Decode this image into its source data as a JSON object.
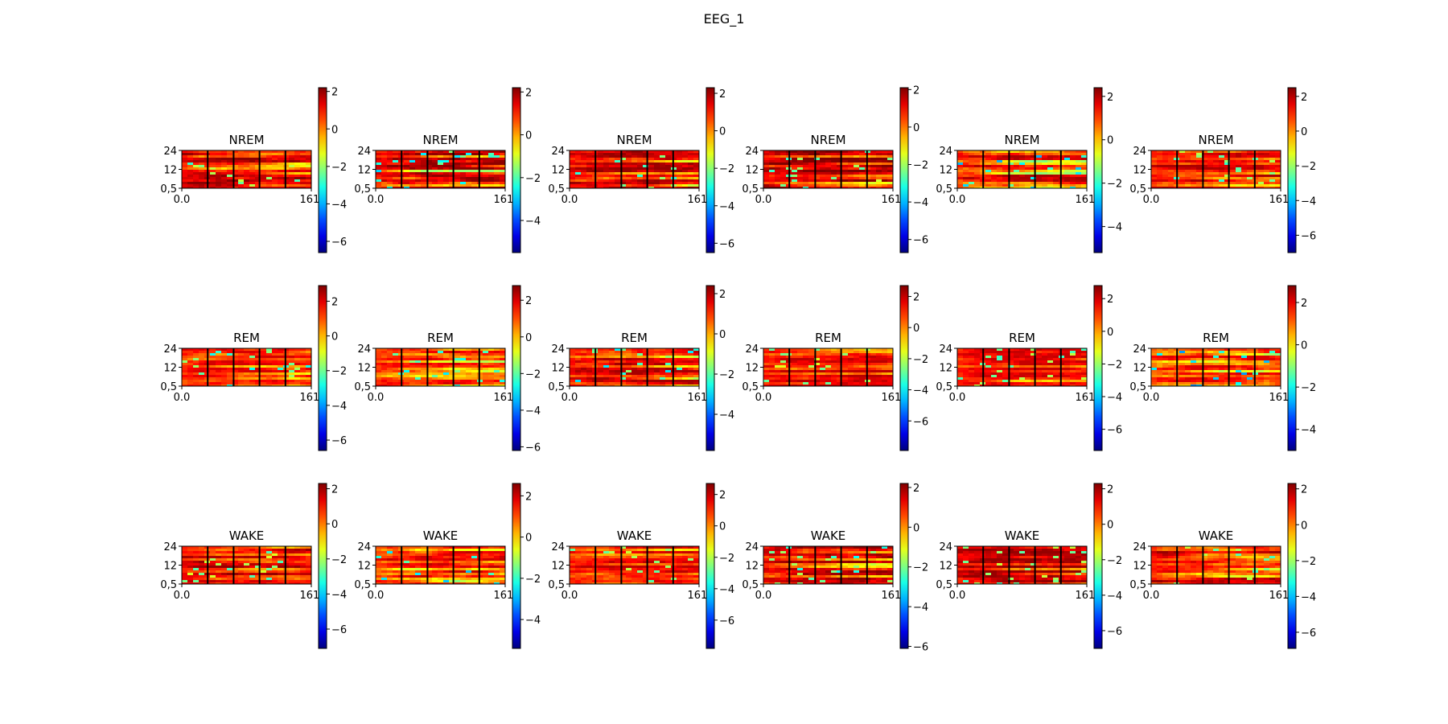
{
  "figure_title": "EEG_1",
  "chart_data": {
    "type": "heatmap",
    "colormap": "jet",
    "rows": [
      "NREM",
      "REM",
      "WAKE"
    ],
    "y_ticks": [
      "24",
      "12",
      "0,5"
    ],
    "x_ticks": [
      "0.0",
      "161."
    ],
    "x_range": [
      0.0,
      161.0
    ],
    "segments_per_panel": 5,
    "panels": [
      {
        "title": "NREM",
        "colorbar": {
          "min": -6.6,
          "max": 2.2,
          "ticks": [
            2,
            0,
            -2,
            -4,
            -6
          ],
          "labels": [
            "2",
            "0",
            "−2",
            "−4",
            "−6"
          ]
        }
      },
      {
        "title": "NREM",
        "colorbar": {
          "min": -5.5,
          "max": 2.2,
          "ticks": [
            2,
            0,
            -2,
            -4
          ],
          "labels": [
            "2",
            "0",
            "−2",
            "−4"
          ]
        }
      },
      {
        "title": "NREM",
        "colorbar": {
          "min": -6.5,
          "max": 2.3,
          "ticks": [
            2,
            0,
            -2,
            -4,
            -6
          ],
          "labels": [
            "2",
            "0",
            "−2",
            "−4",
            "−6"
          ]
        }
      },
      {
        "title": "NREM",
        "colorbar": {
          "min": -6.7,
          "max": 2.1,
          "ticks": [
            2,
            0,
            -2,
            -4,
            -6
          ],
          "labels": [
            "2",
            "0",
            "−2",
            "−4",
            "−6"
          ]
        }
      },
      {
        "title": "NREM",
        "colorbar": {
          "min": -5.2,
          "max": 2.4,
          "ticks": [
            2,
            0,
            -2,
            -4
          ],
          "labels": [
            "2",
            "0",
            "−2",
            "−4"
          ]
        }
      },
      {
        "title": "NREM",
        "colorbar": {
          "min": -7.0,
          "max": 2.5,
          "ticks": [
            2,
            0,
            -2,
            -4,
            -6
          ],
          "labels": [
            "2",
            "0",
            "−2",
            "−4",
            "−6"
          ]
        }
      },
      {
        "title": "REM",
        "colorbar": {
          "min": -6.6,
          "max": 2.9,
          "ticks": [
            2,
            0,
            -2,
            -4,
            -6
          ],
          "labels": [
            "2",
            "0",
            "−2",
            "−4",
            "−6"
          ]
        }
      },
      {
        "title": "REM",
        "colorbar": {
          "min": -6.2,
          "max": 2.8,
          "ticks": [
            2,
            0,
            -2,
            -4,
            -6
          ],
          "labels": [
            "2",
            "0",
            "−2",
            "−4",
            "−6"
          ]
        }
      },
      {
        "title": "REM",
        "colorbar": {
          "min": -5.8,
          "max": 2.4,
          "ticks": [
            2,
            0,
            -2,
            -4
          ],
          "labels": [
            "2",
            "0",
            "−2",
            "−4"
          ]
        }
      },
      {
        "title": "REM",
        "colorbar": {
          "min": -7.9,
          "max": 2.7,
          "ticks": [
            2,
            0,
            -2,
            -4,
            -6
          ],
          "labels": [
            "2",
            "0",
            "−2",
            "−4",
            "−6"
          ]
        }
      },
      {
        "title": "REM",
        "colorbar": {
          "min": -7.3,
          "max": 2.8,
          "ticks": [
            2,
            0,
            -2,
            -4,
            -6
          ],
          "labels": [
            "2",
            "0",
            "−2",
            "−4",
            "−6"
          ]
        }
      },
      {
        "title": "REM",
        "colorbar": {
          "min": -5.0,
          "max": 2.8,
          "ticks": [
            2,
            0,
            -2,
            -4
          ],
          "labels": [
            "2",
            "0",
            "−2",
            "−4"
          ]
        }
      },
      {
        "title": "WAKE",
        "colorbar": {
          "min": -7.1,
          "max": 2.3,
          "ticks": [
            2,
            0,
            -2,
            -4,
            -6
          ],
          "labels": [
            "2",
            "0",
            "−2",
            "−4",
            "−6"
          ]
        }
      },
      {
        "title": "WAKE",
        "colorbar": {
          "min": -5.4,
          "max": 2.6,
          "ticks": [
            2,
            0,
            -2,
            -4
          ],
          "labels": [
            "2",
            "0",
            "−2",
            "−4"
          ]
        }
      },
      {
        "title": "WAKE",
        "colorbar": {
          "min": -7.8,
          "max": 2.7,
          "ticks": [
            2,
            0,
            -2,
            -4,
            -6
          ],
          "labels": [
            "2",
            "0",
            "−2",
            "−4",
            "−6"
          ]
        }
      },
      {
        "title": "WAKE",
        "colorbar": {
          "min": -6.1,
          "max": 2.2,
          "ticks": [
            2,
            0,
            -2,
            -4,
            -6
          ],
          "labels": [
            "2",
            "0",
            "−2",
            "−4",
            "−6"
          ]
        }
      },
      {
        "title": "WAKE",
        "colorbar": {
          "min": -7.0,
          "max": 2.3,
          "ticks": [
            2,
            0,
            -2,
            -4,
            -6
          ],
          "labels": [
            "2",
            "0",
            "−2",
            "−4",
            "−6"
          ]
        }
      },
      {
        "title": "WAKE",
        "colorbar": {
          "min": -6.9,
          "max": 2.3,
          "ticks": [
            2,
            0,
            -2,
            -4,
            -6
          ],
          "labels": [
            "2",
            "0",
            "−2",
            "−4",
            "−6"
          ]
        }
      }
    ]
  }
}
